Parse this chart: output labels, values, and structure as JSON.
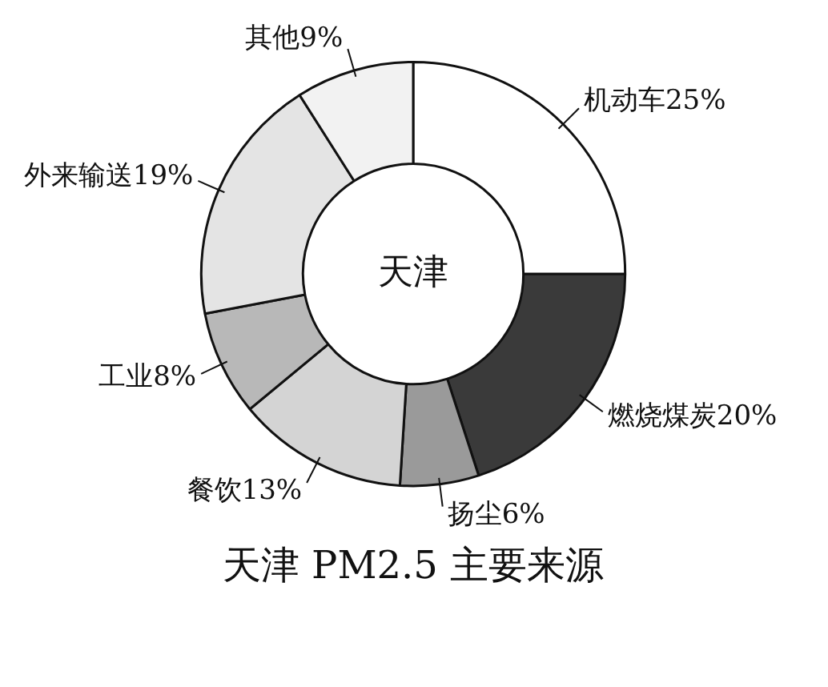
{
  "chart_data": {
    "type": "donut",
    "title": "天津 PM2.5 主要来源",
    "categories": [
      "机动车",
      "燃烧煤炭",
      "扬尘",
      "餐饮",
      "工业",
      "外来输送",
      "其他"
    ],
    "values": [
      25,
      20,
      6,
      13,
      8,
      19,
      9
    ],
    "colors": [
      "#ffffff",
      "#3a3a3a",
      "#9a9a9a",
      "#d4d4d4",
      "#b8b8b8",
      "#e4e4e4",
      "#f2f2f2"
    ],
    "value_labels": [
      "25%",
      "20%",
      "6%",
      "13%",
      "8%",
      "19%",
      "9%"
    ],
    "annotations": [
      "天津"
    ]
  }
}
